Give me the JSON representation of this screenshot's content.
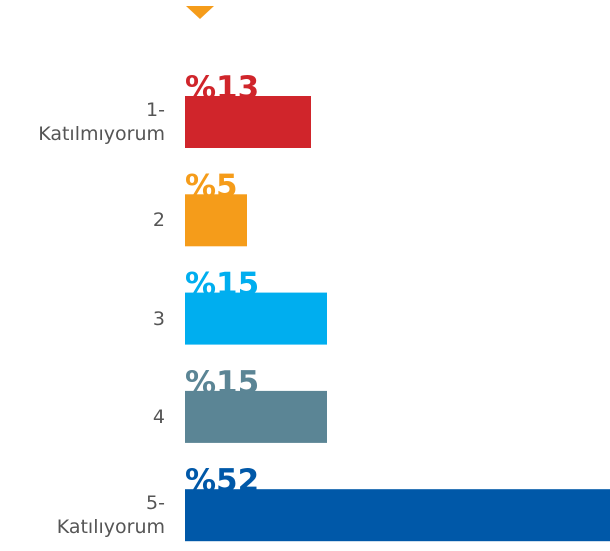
{
  "chart_data": {
    "type": "bar",
    "orientation": "horizontal",
    "categories": [
      "1- Katılmıyorum",
      "2",
      "3",
      "4",
      "5- Katılıyorum"
    ],
    "values": [
      13,
      5,
      15,
      15,
      52
    ],
    "value_labels": [
      "%13",
      "%5",
      "%15",
      "%15",
      "%52"
    ],
    "colors": [
      "#d0252b",
      "#f59c1a",
      "#00aeef",
      "#5b8595",
      "#0058a8"
    ]
  }
}
